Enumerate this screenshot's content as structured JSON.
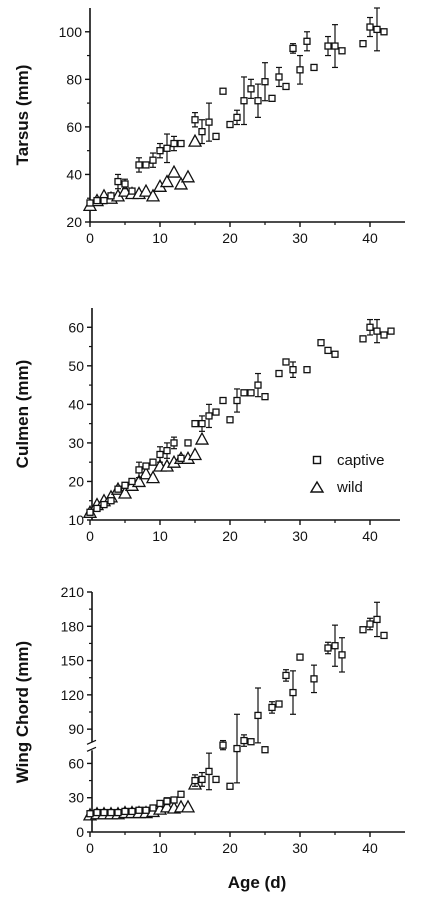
{
  "figure": {
    "xlabel": "Age (d)"
  },
  "legend": {
    "items": [
      {
        "label": "captive",
        "marker": "square"
      },
      {
        "label": "wild",
        "marker": "triangle"
      }
    ]
  },
  "chart_data": [
    {
      "type": "scatter",
      "ylabel": "Tarsus (mm)",
      "xlim": [
        0,
        45
      ],
      "ylim": [
        20,
        110
      ],
      "xticks": [
        0,
        10,
        20,
        30,
        40
      ],
      "yticks": [
        20,
        40,
        60,
        80,
        100
      ],
      "xtick_labels": [
        "0",
        "10",
        "20",
        "30",
        "40"
      ],
      "ytick_labels": [
        "20",
        "40",
        "60",
        "80",
        "100"
      ],
      "series": [
        {
          "name": "captive",
          "marker": "square",
          "points": [
            {
              "x": 0,
              "y": 28
            },
            {
              "x": 1,
              "y": 29
            },
            {
              "x": 2,
              "y": 29
            },
            {
              "x": 3,
              "y": 31
            },
            {
              "x": 4,
              "y": 37,
              "err": 3
            },
            {
              "x": 5,
              "y": 36,
              "err": 2
            },
            {
              "x": 6,
              "y": 33
            },
            {
              "x": 7,
              "y": 44,
              "err": 3
            },
            {
              "x": 8,
              "y": 44
            },
            {
              "x": 9,
              "y": 46,
              "err": 3
            },
            {
              "x": 10,
              "y": 50,
              "err": 3
            },
            {
              "x": 11,
              "y": 51,
              "err": 6
            },
            {
              "x": 12,
              "y": 53,
              "err": 3
            },
            {
              "x": 13,
              "y": 53
            },
            {
              "x": 15,
              "y": 63,
              "err": 3
            },
            {
              "x": 16,
              "y": 58,
              "err": 5
            },
            {
              "x": 17,
              "y": 62,
              "err": 8
            },
            {
              "x": 18,
              "y": 56
            },
            {
              "x": 19,
              "y": 75
            },
            {
              "x": 20,
              "y": 61
            },
            {
              "x": 21,
              "y": 64,
              "err": 3
            },
            {
              "x": 22,
              "y": 71,
              "err": 10
            },
            {
              "x": 23,
              "y": 76,
              "err": 4
            },
            {
              "x": 24,
              "y": 71,
              "err": 7
            },
            {
              "x": 25,
              "y": 79,
              "err": 8
            },
            {
              "x": 26,
              "y": 72
            },
            {
              "x": 27,
              "y": 81,
              "err": 4
            },
            {
              "x": 28,
              "y": 77
            },
            {
              "x": 29,
              "y": 93,
              "err": 2
            },
            {
              "x": 30,
              "y": 84,
              "err": 6
            },
            {
              "x": 31,
              "y": 96,
              "err": 4
            },
            {
              "x": 32,
              "y": 85
            },
            {
              "x": 34,
              "y": 94,
              "err": 4
            },
            {
              "x": 35,
              "y": 94,
              "err": 9
            },
            {
              "x": 36,
              "y": 92
            },
            {
              "x": 39,
              "y": 95
            },
            {
              "x": 40,
              "y": 102,
              "err": 4
            },
            {
              "x": 41,
              "y": 101,
              "err": 9
            },
            {
              "x": 42,
              "y": 100
            }
          ]
        },
        {
          "name": "wild",
          "marker": "triangle",
          "points": [
            {
              "x": 0,
              "y": 27
            },
            {
              "x": 1,
              "y": 29
            },
            {
              "x": 2,
              "y": 31
            },
            {
              "x": 3,
              "y": 30
            },
            {
              "x": 4,
              "y": 31
            },
            {
              "x": 5,
              "y": 33
            },
            {
              "x": 6,
              "y": 32
            },
            {
              "x": 7,
              "y": 32
            },
            {
              "x": 8,
              "y": 33
            },
            {
              "x": 9,
              "y": 31
            },
            {
              "x": 10,
              "y": 35
            },
            {
              "x": 11,
              "y": 37
            },
            {
              "x": 12,
              "y": 41
            },
            {
              "x": 13,
              "y": 36
            },
            {
              "x": 14,
              "y": 39
            },
            {
              "x": 15,
              "y": 54
            }
          ]
        }
      ]
    },
    {
      "type": "scatter",
      "ylabel": "Culmen (mm)",
      "xlim": [
        0,
        45
      ],
      "ylim": [
        10,
        65
      ],
      "xticks": [
        0,
        10,
        20,
        30,
        40
      ],
      "yticks": [
        10,
        20,
        30,
        40,
        50,
        60
      ],
      "xtick_labels": [
        "0",
        "10",
        "20",
        "30",
        "40"
      ],
      "ytick_labels": [
        "10",
        "20",
        "30",
        "40",
        "50",
        "60"
      ],
      "series": [
        {
          "name": "captive",
          "marker": "square",
          "points": [
            {
              "x": 0,
              "y": 12
            },
            {
              "x": 1,
              "y": 13
            },
            {
              "x": 2,
              "y": 14
            },
            {
              "x": 3,
              "y": 15
            },
            {
              "x": 4,
              "y": 18
            },
            {
              "x": 5,
              "y": 19
            },
            {
              "x": 6,
              "y": 20
            },
            {
              "x": 7,
              "y": 23,
              "err": 2
            },
            {
              "x": 8,
              "y": 24
            },
            {
              "x": 9,
              "y": 25
            },
            {
              "x": 10,
              "y": 27,
              "err": 2
            },
            {
              "x": 11,
              "y": 28,
              "err": 2
            },
            {
              "x": 12,
              "y": 30,
              "err": 1.5
            },
            {
              "x": 13,
              "y": 26
            },
            {
              "x": 14,
              "y": 30
            },
            {
              "x": 15,
              "y": 35
            },
            {
              "x": 16,
              "y": 35,
              "err": 2
            },
            {
              "x": 17,
              "y": 37,
              "err": 3
            },
            {
              "x": 18,
              "y": 38
            },
            {
              "x": 19,
              "y": 41
            },
            {
              "x": 20,
              "y": 36
            },
            {
              "x": 21,
              "y": 41,
              "err": 3
            },
            {
              "x": 22,
              "y": 43
            },
            {
              "x": 23,
              "y": 43
            },
            {
              "x": 24,
              "y": 45,
              "err": 3
            },
            {
              "x": 25,
              "y": 42
            },
            {
              "x": 27,
              "y": 48
            },
            {
              "x": 28,
              "y": 51
            },
            {
              "x": 29,
              "y": 49,
              "err": 2
            },
            {
              "x": 31,
              "y": 49
            },
            {
              "x": 33,
              "y": 56
            },
            {
              "x": 34,
              "y": 54
            },
            {
              "x": 35,
              "y": 53
            },
            {
              "x": 39,
              "y": 57
            },
            {
              "x": 40,
              "y": 60,
              "err": 2
            },
            {
              "x": 41,
              "y": 59,
              "err": 3
            },
            {
              "x": 42,
              "y": 58
            },
            {
              "x": 43,
              "y": 59
            }
          ]
        },
        {
          "name": "wild",
          "marker": "triangle",
          "points": [
            {
              "x": 0,
              "y": 12
            },
            {
              "x": 1,
              "y": 14
            },
            {
              "x": 2,
              "y": 15
            },
            {
              "x": 3,
              "y": 16
            },
            {
              "x": 4,
              "y": 18
            },
            {
              "x": 5,
              "y": 17
            },
            {
              "x": 6,
              "y": 19
            },
            {
              "x": 7,
              "y": 20
            },
            {
              "x": 8,
              "y": 22
            },
            {
              "x": 9,
              "y": 21
            },
            {
              "x": 10,
              "y": 24
            },
            {
              "x": 11,
              "y": 24
            },
            {
              "x": 12,
              "y": 25
            },
            {
              "x": 13,
              "y": 26
            },
            {
              "x": 14,
              "y": 26
            },
            {
              "x": 15,
              "y": 27
            },
            {
              "x": 16,
              "y": 31
            }
          ]
        }
      ]
    },
    {
      "type": "scatter",
      "ylabel": "Wing Chord (mm)",
      "xlim": [
        0,
        45
      ],
      "ylim": [
        0,
        210
      ],
      "xticks": [
        0,
        10,
        20,
        30,
        40
      ],
      "yticks": [
        0,
        30,
        60,
        90,
        120,
        150,
        180,
        210
      ],
      "xtick_labels": [
        "0",
        "10",
        "20",
        "30",
        "40"
      ],
      "ytick_labels": [
        "0",
        "30",
        "60",
        "90",
        "120",
        "150",
        "180",
        "210"
      ],
      "series": [
        {
          "name": "captive",
          "marker": "square",
          "points": [
            {
              "x": 0,
              "y": 16
            },
            {
              "x": 1,
              "y": 17
            },
            {
              "x": 2,
              "y": 17
            },
            {
              "x": 3,
              "y": 17
            },
            {
              "x": 4,
              "y": 17
            },
            {
              "x": 5,
              "y": 18
            },
            {
              "x": 6,
              "y": 18
            },
            {
              "x": 7,
              "y": 19
            },
            {
              "x": 8,
              "y": 19
            },
            {
              "x": 9,
              "y": 21
            },
            {
              "x": 10,
              "y": 25
            },
            {
              "x": 11,
              "y": 27,
              "err": 3
            },
            {
              "x": 12,
              "y": 28
            },
            {
              "x": 13,
              "y": 33
            },
            {
              "x": 15,
              "y": 45,
              "err": 5
            },
            {
              "x": 16,
              "y": 46,
              "err": 6
            },
            {
              "x": 17,
              "y": 53,
              "err": 16
            },
            {
              "x": 18,
              "y": 46
            },
            {
              "x": 19,
              "y": 76,
              "err": 4
            },
            {
              "x": 20,
              "y": 40
            },
            {
              "x": 21,
              "y": 73,
              "err": 30
            },
            {
              "x": 22,
              "y": 80,
              "err": 5
            },
            {
              "x": 23,
              "y": 79
            },
            {
              "x": 24,
              "y": 102,
              "err": 24
            },
            {
              "x": 25,
              "y": 72
            },
            {
              "x": 26,
              "y": 109,
              "err": 5
            },
            {
              "x": 27,
              "y": 112
            },
            {
              "x": 28,
              "y": 137,
              "err": 5
            },
            {
              "x": 29,
              "y": 122,
              "err": 19
            },
            {
              "x": 30,
              "y": 153
            },
            {
              "x": 32,
              "y": 134,
              "err": 12
            },
            {
              "x": 34,
              "y": 161,
              "err": 5
            },
            {
              "x": 35,
              "y": 163,
              "err": 18
            },
            {
              "x": 36,
              "y": 155,
              "err": 15
            },
            {
              "x": 39,
              "y": 177
            },
            {
              "x": 40,
              "y": 182,
              "err": 5
            },
            {
              "x": 41,
              "y": 186,
              "err": 15
            },
            {
              "x": 42,
              "y": 172
            }
          ]
        },
        {
          "name": "wild",
          "marker": "triangle",
          "points": [
            {
              "x": 0,
              "y": 15
            },
            {
              "x": 1,
              "y": 16
            },
            {
              "x": 2,
              "y": 16
            },
            {
              "x": 3,
              "y": 16
            },
            {
              "x": 4,
              "y": 16
            },
            {
              "x": 5,
              "y": 17
            },
            {
              "x": 6,
              "y": 17
            },
            {
              "x": 7,
              "y": 17
            },
            {
              "x": 8,
              "y": 17
            },
            {
              "x": 9,
              "y": 18
            },
            {
              "x": 10,
              "y": 20
            },
            {
              "x": 11,
              "y": 22
            },
            {
              "x": 12,
              "y": 21
            },
            {
              "x": 13,
              "y": 22
            },
            {
              "x": 14,
              "y": 22
            },
            {
              "x": 15,
              "y": 42
            }
          ]
        }
      ]
    }
  ]
}
